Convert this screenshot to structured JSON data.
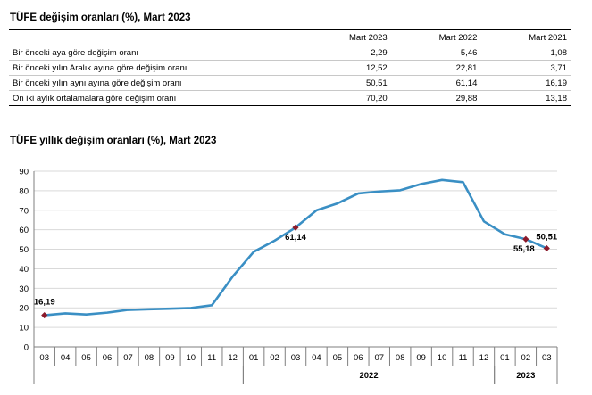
{
  "table_title": "TÜFE değişim oranları (%), Mart 2023",
  "table": {
    "columns": [
      "Mart 2023",
      "Mart 2022",
      "Mart 2021"
    ],
    "rows": [
      {
        "label": "Bir önceki aya göre değişim oranı",
        "values": [
          "2,29",
          "5,46",
          "1,08"
        ]
      },
      {
        "label": "Bir önceki yılın Aralık ayına göre değişim oranı",
        "values": [
          "12,52",
          "22,81",
          "3,71"
        ]
      },
      {
        "label": "Bir önceki yılın aynı ayına göre değişim oranı",
        "values": [
          "50,51",
          "61,14",
          "16,19"
        ]
      },
      {
        "label": "On iki aylık ortalamalara göre değişim oranı",
        "values": [
          "70,20",
          "29,88",
          "13,18"
        ]
      }
    ]
  },
  "chart_data": {
    "type": "line",
    "title": "TÜFE yıllık değişim oranları (%), Mart 2023",
    "categories": [
      "03",
      "04",
      "05",
      "06",
      "07",
      "08",
      "09",
      "10",
      "11",
      "12",
      "01",
      "02",
      "03",
      "04",
      "05",
      "06",
      "07",
      "08",
      "09",
      "10",
      "11",
      "12",
      "01",
      "02",
      "03"
    ],
    "year_groups": [
      {
        "label": "",
        "start": 0,
        "end": 9
      },
      {
        "label": "2022",
        "start": 10,
        "end": 21
      },
      {
        "label": "2023",
        "start": 22,
        "end": 24
      }
    ],
    "series": [
      {
        "name": "",
        "color": "#3a8fc4",
        "values": [
          16.19,
          17.14,
          16.59,
          17.53,
          18.95,
          19.25,
          19.58,
          19.89,
          21.31,
          36.08,
          48.69,
          54.44,
          61.14,
          69.97,
          73.5,
          78.62,
          79.6,
          80.21,
          83.45,
          85.51,
          84.39,
          64.27,
          57.68,
          55.18,
          50.51
        ]
      }
    ],
    "markers": [
      {
        "index": 0,
        "label": "16,19"
      },
      {
        "index": 12,
        "label": "61,14"
      },
      {
        "index": 23,
        "label": "55,18"
      },
      {
        "index": 24,
        "label": "50,51"
      }
    ],
    "ylim": [
      0,
      90
    ],
    "yticks": [
      0,
      10,
      20,
      30,
      40,
      50,
      60,
      70,
      80,
      90
    ],
    "grid": true,
    "colors": {
      "line": "#3a8fc4",
      "marker": "#8b1a2b",
      "grid": "#d9d9d9"
    }
  }
}
